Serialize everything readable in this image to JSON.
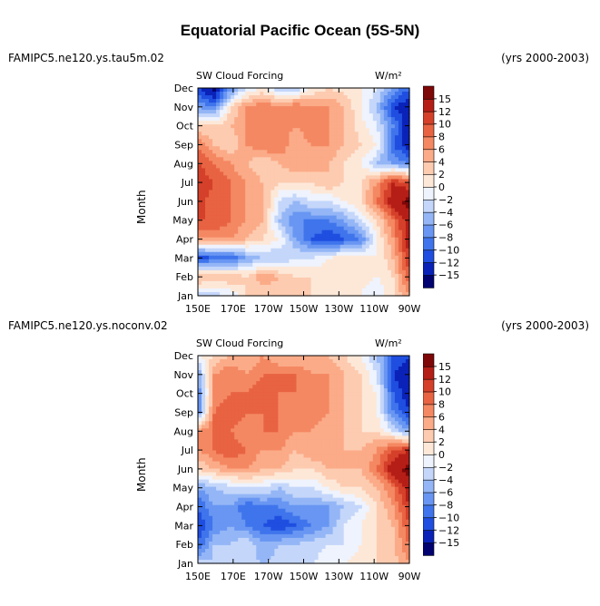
{
  "title": "Equatorial Pacific Ocean (5S-5N)",
  "chart_data": [
    {
      "type": "heatmap",
      "case": "FAMIPC5.ne120.ys.tau5m.02",
      "years": "(yrs 2000-2003)",
      "field": "SW Cloud Forcing",
      "units": "W/m²",
      "ylabel": "Month",
      "x_ticks": [
        "150E",
        "170E",
        "170W",
        "150W",
        "130W",
        "110W",
        "90W"
      ],
      "y_ticks": [
        "Jan",
        "Feb",
        "Mar",
        "Apr",
        "May",
        "Jun",
        "Jul",
        "Aug",
        "Sep",
        "Oct",
        "Nov",
        "Dec"
      ],
      "grid_values": [
        [
          -4,
          -3,
          -2,
          2,
          2,
          2,
          2,
          2,
          2,
          1,
          0,
          -2,
          2,
          6
        ],
        [
          5,
          4,
          4,
          2,
          6,
          4,
          2,
          2,
          1,
          2,
          1,
          0,
          2,
          10
        ],
        [
          -12,
          -10,
          -10,
          -6,
          -4,
          -4,
          -2,
          -2,
          0,
          1,
          1,
          0,
          4,
          12
        ],
        [
          6,
          6,
          6,
          4,
          2,
          0,
          -6,
          -10,
          -12,
          -10,
          -8,
          0,
          6,
          14
        ],
        [
          10,
          10,
          8,
          6,
          4,
          -4,
          -8,
          -8,
          -8,
          -6,
          -2,
          2,
          8,
          14
        ],
        [
          11,
          9,
          8,
          6,
          5,
          -2,
          -4,
          -2,
          -2,
          0,
          2,
          8,
          14,
          16
        ],
        [
          12,
          10,
          8,
          6,
          4,
          2,
          2,
          2,
          4,
          2,
          2,
          6,
          12,
          10
        ],
        [
          10,
          8,
          6,
          4,
          2,
          4,
          6,
          6,
          4,
          2,
          0,
          -4,
          -6,
          -8
        ],
        [
          8,
          4,
          2,
          6,
          8,
          8,
          4,
          6,
          6,
          4,
          2,
          0,
          -10,
          -14
        ],
        [
          2,
          2,
          4,
          6,
          6,
          8,
          6,
          8,
          6,
          4,
          1,
          -2,
          -8,
          -14
        ],
        [
          -6,
          -8,
          2,
          6,
          8,
          6,
          8,
          6,
          6,
          4,
          0,
          -4,
          -12,
          -14
        ],
        [
          -12,
          -16,
          -8,
          -2,
          0,
          -4,
          -4,
          0,
          2,
          1,
          0,
          -2,
          -6,
          -10
        ]
      ]
    },
    {
      "type": "heatmap",
      "case": "FAMIPC5.ne120.ys.noconv.02",
      "years": "(yrs 2000-2003)",
      "field": "SW Cloud Forcing",
      "units": "W/m²",
      "ylabel": "Month",
      "x_ticks": [
        "150E",
        "170E",
        "170W",
        "150W",
        "130W",
        "110W",
        "90W"
      ],
      "y_ticks": [
        "Jan",
        "Feb",
        "Mar",
        "Apr",
        "May",
        "Jun",
        "Jul",
        "Aug",
        "Sep",
        "Oct",
        "Nov",
        "Dec"
      ],
      "grid_values": [
        [
          -3,
          -4,
          -2,
          -3,
          -4,
          -3,
          -2,
          -2,
          -1,
          0,
          1,
          2,
          3,
          6
        ],
        [
          -10,
          -4,
          -4,
          -2,
          -6,
          -4,
          -4,
          -3,
          -2,
          -2,
          0,
          2,
          4,
          8
        ],
        [
          -12,
          -8,
          -6,
          -8,
          -10,
          -12,
          -10,
          -8,
          -6,
          -2,
          0,
          2,
          4,
          10
        ],
        [
          -10,
          -6,
          -6,
          -10,
          -8,
          -8,
          -6,
          -6,
          -6,
          -4,
          -2,
          2,
          6,
          12
        ],
        [
          -6,
          -4,
          -3,
          -2,
          -2,
          -4,
          -2,
          -2,
          0,
          2,
          2,
          4,
          8,
          14
        ],
        [
          2,
          4,
          6,
          6,
          4,
          4,
          2,
          2,
          4,
          4,
          4,
          8,
          14,
          16
        ],
        [
          6,
          8,
          10,
          8,
          6,
          6,
          4,
          6,
          6,
          4,
          4,
          6,
          10,
          12
        ],
        [
          6,
          8,
          8,
          6,
          8,
          8,
          6,
          6,
          4,
          4,
          2,
          2,
          -2,
          -6
        ],
        [
          -8,
          8,
          10,
          8,
          8,
          8,
          6,
          8,
          6,
          4,
          2,
          0,
          -8,
          -12
        ],
        [
          -8,
          6,
          8,
          8,
          10,
          8,
          8,
          8,
          6,
          4,
          2,
          0,
          -10,
          -14
        ],
        [
          -6,
          6,
          8,
          6,
          8,
          8,
          8,
          6,
          6,
          4,
          2,
          -2,
          -12,
          -14
        ],
        [
          0,
          2,
          4,
          4,
          6,
          4,
          4,
          4,
          4,
          2,
          0,
          -4,
          -10,
          -12
        ]
      ]
    }
  ],
  "colorbar": {
    "labels": [
      "15",
      "12",
      "10",
      "8",
      "6",
      "4",
      "2",
      "0",
      "−2",
      "−4",
      "−6",
      "−8",
      "−10",
      "−12",
      "−15"
    ],
    "bounds": [
      -15,
      -12,
      -10,
      -8,
      -6,
      -4,
      -2,
      0,
      2,
      4,
      6,
      8,
      10,
      12,
      15
    ],
    "colors": [
      "#020270",
      "#0a22b8",
      "#1f4ee0",
      "#3f74ec",
      "#6896f2",
      "#94b6f6",
      "#c4d6fa",
      "#eef3fd",
      "#fde8d8",
      "#fdcbb0",
      "#fbab88",
      "#f48862",
      "#e86342",
      "#d5402a",
      "#b51e16",
      "#7e0708"
    ]
  }
}
